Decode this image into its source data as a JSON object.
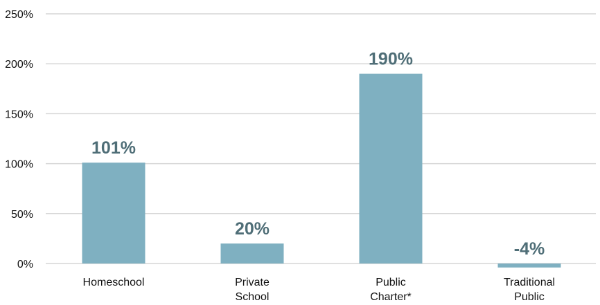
{
  "chart_data": {
    "type": "bar",
    "title": "",
    "xlabel": "",
    "ylabel": "",
    "categories": [
      [
        "Homeschool"
      ],
      [
        "Private",
        "School"
      ],
      [
        "Public",
        "Charter*"
      ],
      [
        "Traditional",
        "Public"
      ]
    ],
    "values": [
      101,
      20,
      190,
      -4
    ],
    "value_labels": [
      "101%",
      "20%",
      "190%",
      "-4%"
    ],
    "ylim": [
      0,
      250
    ],
    "yticks": [
      0,
      50,
      100,
      150,
      200,
      250
    ],
    "ytick_labels": [
      "0%",
      "50%",
      "100%",
      "150%",
      "200%",
      "250%"
    ],
    "grid": true,
    "legend": "none",
    "colors": {
      "bar": "#7fb0c1",
      "data_label": "#4f6e77",
      "grid": "#d6d6d6",
      "text": "#111111"
    }
  }
}
